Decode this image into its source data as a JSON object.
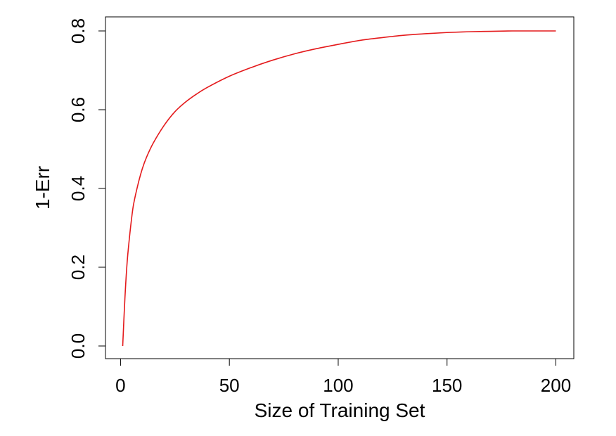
{
  "chart_data": {
    "type": "line",
    "title": "",
    "xlabel": "Size of Training Set",
    "ylabel": "1-Err",
    "xlim": [
      1,
      200
    ],
    "ylim": [
      0,
      0.8
    ],
    "xticks": [
      0,
      50,
      100,
      150,
      200
    ],
    "xtick_labels": [
      "0",
      "50",
      "100",
      "150",
      "200"
    ],
    "yticks": [
      0,
      0.2,
      0.4,
      0.6,
      0.8
    ],
    "ytick_labels": [
      "0.0",
      "0.2",
      "0.4",
      "0.6",
      "0.8"
    ],
    "grid": false,
    "legend": "none",
    "series": [
      {
        "color": "#e41a1c",
        "x": [
          1,
          2,
          3,
          4,
          5,
          6,
          8,
          10,
          12,
          15,
          20,
          25,
          30,
          35,
          40,
          50,
          60,
          70,
          80,
          90,
          100,
          110,
          120,
          130,
          140,
          150,
          160,
          170,
          180,
          190,
          200
        ],
        "y": [
          0.0,
          0.12,
          0.21,
          0.27,
          0.32,
          0.36,
          0.41,
          0.45,
          0.48,
          0.515,
          0.56,
          0.595,
          0.62,
          0.64,
          0.657,
          0.685,
          0.707,
          0.726,
          0.742,
          0.755,
          0.766,
          0.776,
          0.783,
          0.789,
          0.793,
          0.796,
          0.798,
          0.799,
          0.8,
          0.8,
          0.8
        ]
      }
    ]
  }
}
